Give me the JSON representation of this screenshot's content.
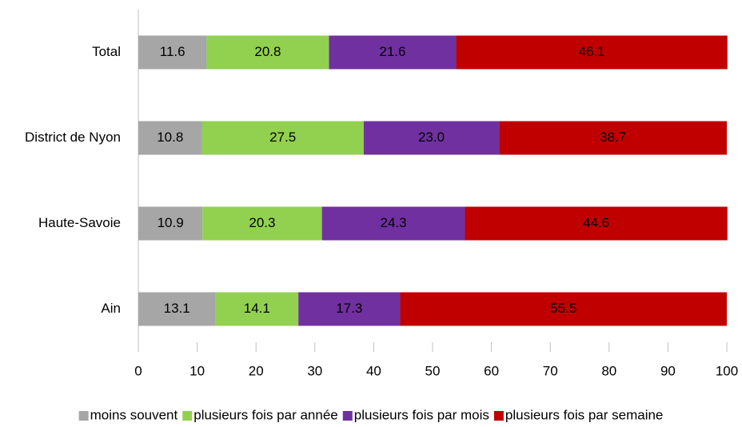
{
  "chart_data": {
    "type": "stacked-bar-horizontal",
    "categories": [
      "Total",
      "District de Nyon",
      "Haute-Savoie",
      "Ain"
    ],
    "series": [
      {
        "name": "moins souvent",
        "color": "#a6a6a6",
        "values": [
          11.6,
          10.8,
          10.9,
          13.1
        ],
        "value_labels": [
          "11.6",
          "10.8",
          "10.9",
          "13.1"
        ]
      },
      {
        "name": "plusieurs fois par année",
        "color": "#92d050",
        "values": [
          20.8,
          27.5,
          20.3,
          14.1
        ],
        "value_labels": [
          "20.8",
          "27.5",
          "20.3",
          "14.1"
        ]
      },
      {
        "name": "plusieurs fois par mois",
        "color": "#7030a0",
        "values": [
          21.6,
          23.0,
          24.3,
          17.3
        ],
        "value_labels": [
          "21.6",
          "23.0",
          "24.3",
          "17.3"
        ]
      },
      {
        "name": "plusieurs fois par semaine",
        "color": "#c00000",
        "values": [
          46.1,
          38.7,
          44.6,
          55.5
        ],
        "value_labels": [
          "46.1",
          "38.7",
          "44.6",
          "55.5"
        ]
      }
    ],
    "xlim": [
      0,
      100
    ],
    "xticks": [
      0,
      10,
      20,
      30,
      40,
      50,
      60,
      70,
      80,
      90,
      100
    ],
    "grid": false,
    "legend": "bottom"
  }
}
